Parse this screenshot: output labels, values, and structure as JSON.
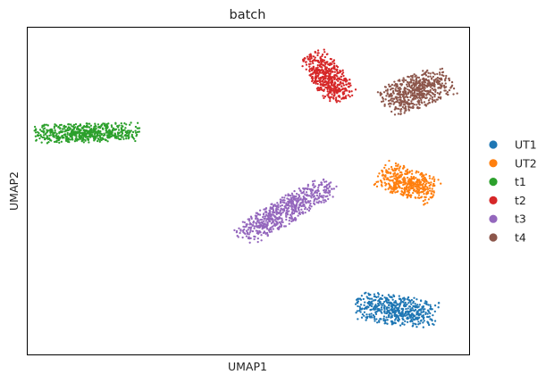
{
  "chart_data": {
    "type": "scatter",
    "title": "batch",
    "xlabel": "UMAP1",
    "ylabel": "UMAP2",
    "xlim": [
      0,
      100
    ],
    "ylim": [
      0,
      100
    ],
    "grid": false,
    "ticks": false,
    "legend_position": "right",
    "series": [
      {
        "name": "UT1",
        "color": "#1f77b4",
        "cluster": {
          "center": [
            83.5,
            13.5
          ],
          "spread": [
            4.3,
            9.0
          ],
          "angle": 80,
          "count": 520,
          "seed": 11
        }
      },
      {
        "name": "UT2",
        "color": "#ff7f0e",
        "cluster": {
          "center": [
            86.0,
            52.5
          ],
          "spread": [
            6.8,
            4.2
          ],
          "angle": -28,
          "count": 420,
          "seed": 23
        }
      },
      {
        "name": "t1",
        "color": "#2ca02c",
        "cluster": {
          "center": [
            13.5,
            67.8
          ],
          "spread": [
            11.5,
            2.8
          ],
          "angle": 2,
          "count": 600,
          "seed": 37
        }
      },
      {
        "name": "t2",
        "color": "#d62728",
        "cluster": {
          "center": [
            68.0,
            85.0
          ],
          "spread": [
            7.8,
            3.8
          ],
          "angle": -62,
          "count": 500,
          "seed": 41
        }
      },
      {
        "name": "t3",
        "color": "#9467bd",
        "cluster": {
          "center": [
            58.5,
            44.0
          ],
          "spread": [
            13.0,
            3.6
          ],
          "angle": 38,
          "count": 620,
          "seed": 53
        }
      },
      {
        "name": "t4",
        "color": "#8c564b",
        "cluster": {
          "center": [
            88.0,
            80.5
          ],
          "spread": [
            8.2,
            4.8
          ],
          "angle": 28,
          "count": 560,
          "seed": 67
        }
      }
    ]
  }
}
